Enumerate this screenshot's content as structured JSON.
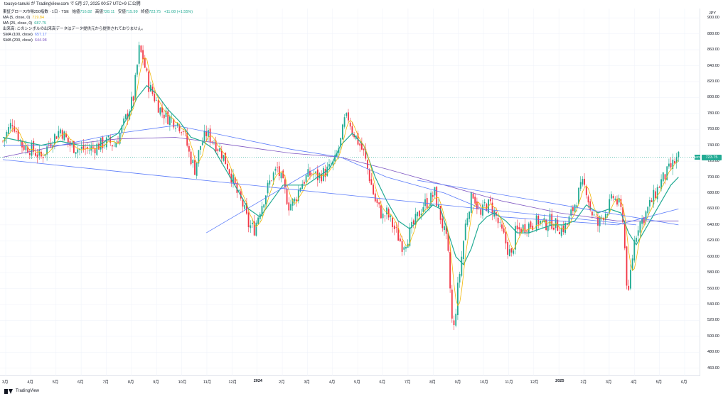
{
  "header": {
    "published_by": "tousyo-tanuki が TradingView.com で 5月 27, 2025 00:57 UTC+9 に公開"
  },
  "legend": {
    "symbol": "東証グロース市場250指数 · 1日 · TSE",
    "ohlc": [
      {
        "label": "始値",
        "value": "716.82"
      },
      {
        "label": "高値",
        "value": "728.11"
      },
      {
        "label": "安値",
        "value": "715.99"
      },
      {
        "label": "終値",
        "value": "723.75"
      }
    ],
    "change": "+11.08 (+1.55%)",
    "indicators": [
      {
        "label": "MA (5, close, 0)",
        "value": "719.84",
        "color": "#f2b705"
      },
      {
        "label": "MA (25, close, 0)",
        "value": "687.75",
        "color": "#22ab94"
      },
      {
        "label": "出来高: このシンボルの出来高データはデータ提供元から提供されておりません。",
        "value": "",
        "color": "#131722"
      },
      {
        "label": "SMA (100, close)",
        "value": "657.17",
        "color": "#5b7cfa"
      },
      {
        "label": "SMA (200, close)",
        "value": "644.98",
        "color": "#7e57c2"
      }
    ]
  },
  "price_axis": {
    "currency": "JPY",
    "ticks": [
      "900.00",
      "880.00",
      "860.00",
      "840.00",
      "820.00",
      "800.00",
      "780.00",
      "760.00",
      "740.00",
      "720.00",
      "700.00",
      "680.00",
      "660.00",
      "640.00",
      "620.00",
      "600.00",
      "580.00",
      "560.00",
      "540.00",
      "520.00",
      "500.00",
      "480.00",
      "460.00"
    ],
    "tag_label": "MOS",
    "current_price": "723.75"
  },
  "time_axis": {
    "ticks": [
      "3月",
      "4月",
      "5月",
      "6月",
      "7月",
      "8月",
      "9月",
      "10月",
      "11月",
      "12月",
      "2024",
      "2月",
      "3月",
      "4月",
      "5月",
      "6月",
      "7月",
      "8月",
      "9月",
      "10月",
      "11月",
      "12月",
      "2025",
      "2月",
      "3月",
      "4月",
      "5月",
      "6月"
    ]
  },
  "footer": {
    "brand": "TradingView"
  },
  "colors": {
    "up": "#22ab94",
    "down": "#f23645",
    "ma5": "#f2b705",
    "ma25": "#22ab94",
    "sma100": "#5b7cfa",
    "sma200": "#7e57c2",
    "trendline": "#5b7cfa"
  },
  "chart_data": {
    "type": "candlestick",
    "ylim": [
      450,
      910
    ],
    "x": [
      "2023-03",
      "2023-04",
      "2023-05",
      "2023-06",
      "2023-07",
      "2023-08",
      "2023-09",
      "2023-10",
      "2023-11",
      "2023-12",
      "2024-01",
      "2024-02",
      "2024-03",
      "2024-04",
      "2024-05",
      "2024-06",
      "2024-07",
      "2024-08",
      "2024-09",
      "2024-10",
      "2024-11",
      "2024-12",
      "2025-01",
      "2025-02",
      "2025-03",
      "2025-04",
      "2025-05",
      "2025-06"
    ],
    "close_path": [
      [
        0,
        745
      ],
      [
        5,
        770
      ],
      [
        10,
        740
      ],
      [
        15,
        735
      ],
      [
        20,
        725
      ],
      [
        25,
        745
      ],
      [
        30,
        760
      ],
      [
        35,
        740
      ],
      [
        40,
        735
      ],
      [
        45,
        735
      ],
      [
        50,
        740
      ],
      [
        55,
        745
      ],
      [
        58,
        740
      ],
      [
        62,
        760
      ],
      [
        65,
        780
      ],
      [
        68,
        800
      ],
      [
        71,
        860
      ],
      [
        73,
        850
      ],
      [
        76,
        815
      ],
      [
        79,
        800
      ],
      [
        82,
        785
      ],
      [
        86,
        775
      ],
      [
        90,
        770
      ],
      [
        94,
        760
      ],
      [
        97,
        730
      ],
      [
        100,
        710
      ],
      [
        103,
        740
      ],
      [
        106,
        755
      ],
      [
        110,
        745
      ],
      [
        114,
        730
      ],
      [
        117,
        715
      ],
      [
        120,
        695
      ],
      [
        122,
        680
      ],
      [
        125,
        665
      ],
      [
        128,
        640
      ],
      [
        131,
        635
      ],
      [
        134,
        660
      ],
      [
        137,
        680
      ],
      [
        140,
        700
      ],
      [
        143,
        710
      ],
      [
        146,
        690
      ],
      [
        149,
        665
      ],
      [
        152,
        670
      ],
      [
        155,
        690
      ],
      [
        158,
        700
      ],
      [
        161,
        705
      ],
      [
        164,
        700
      ],
      [
        167,
        705
      ],
      [
        170,
        710
      ],
      [
        173,
        720
      ],
      [
        176,
        745
      ],
      [
        178,
        770
      ],
      [
        180,
        775
      ],
      [
        182,
        760
      ],
      [
        184,
        750
      ],
      [
        186,
        740
      ],
      [
        188,
        730
      ],
      [
        190,
        710
      ],
      [
        192,
        690
      ],
      [
        194,
        670
      ],
      [
        196,
        660
      ],
      [
        198,
        650
      ],
      [
        200,
        655
      ],
      [
        203,
        640
      ],
      [
        206,
        625
      ],
      [
        208,
        615
      ],
      [
        210,
        620
      ],
      [
        213,
        635
      ],
      [
        216,
        650
      ],
      [
        219,
        665
      ],
      [
        222,
        670
      ],
      [
        225,
        680
      ],
      [
        227,
        660
      ],
      [
        229,
        640
      ],
      [
        231,
        620
      ],
      [
        232,
        600
      ],
      [
        233,
        560
      ],
      [
        234,
        520
      ],
      [
        235,
        510
      ],
      [
        237,
        560
      ],
      [
        239,
        600
      ],
      [
        241,
        640
      ],
      [
        243,
        665
      ],
      [
        245,
        680
      ],
      [
        247,
        665
      ],
      [
        249,
        650
      ],
      [
        251,
        665
      ],
      [
        254,
        665
      ],
      [
        257,
        650
      ],
      [
        259,
        635
      ],
      [
        261,
        625
      ],
      [
        263,
        610
      ],
      [
        265,
        600
      ],
      [
        267,
        630
      ],
      [
        270,
        635
      ],
      [
        273,
        640
      ],
      [
        276,
        640
      ],
      [
        279,
        645
      ],
      [
        282,
        640
      ],
      [
        285,
        645
      ],
      [
        288,
        640
      ],
      [
        291,
        635
      ],
      [
        294,
        640
      ],
      [
        297,
        660
      ],
      [
        300,
        680
      ],
      [
        302,
        690
      ],
      [
        304,
        685
      ],
      [
        306,
        660
      ],
      [
        308,
        650
      ],
      [
        310,
        640
      ],
      [
        312,
        650
      ],
      [
        315,
        660
      ],
      [
        318,
        675
      ],
      [
        321,
        665
      ],
      [
        323,
        650
      ],
      [
        324,
        610
      ],
      [
        325,
        570
      ],
      [
        326,
        550
      ],
      [
        327,
        580
      ],
      [
        329,
        620
      ],
      [
        331,
        640
      ],
      [
        334,
        650
      ],
      [
        337,
        665
      ],
      [
        340,
        680
      ],
      [
        343,
        695
      ],
      [
        346,
        705
      ],
      [
        349,
        716
      ],
      [
        352,
        725
      ]
    ],
    "ma25_path": [
      [
        0,
        750
      ],
      [
        10,
        745
      ],
      [
        20,
        740
      ],
      [
        30,
        745
      ],
      [
        40,
        740
      ],
      [
        50,
        740
      ],
      [
        60,
        755
      ],
      [
        65,
        775
      ],
      [
        70,
        800
      ],
      [
        75,
        815
      ],
      [
        80,
        805
      ],
      [
        86,
        785
      ],
      [
        92,
        770
      ],
      [
        98,
        750
      ],
      [
        104,
        745
      ],
      [
        110,
        735
      ],
      [
        116,
        710
      ],
      [
        122,
        685
      ],
      [
        128,
        660
      ],
      [
        134,
        650
      ],
      [
        140,
        670
      ],
      [
        146,
        690
      ],
      [
        152,
        690
      ],
      [
        158,
        690
      ],
      [
        164,
        700
      ],
      [
        170,
        710
      ],
      [
        176,
        740
      ],
      [
        182,
        755
      ],
      [
        188,
        740
      ],
      [
        194,
        700
      ],
      [
        200,
        670
      ],
      [
        206,
        645
      ],
      [
        212,
        635
      ],
      [
        218,
        650
      ],
      [
        224,
        665
      ],
      [
        228,
        660
      ],
      [
        232,
        630
      ],
      [
        236,
        600
      ],
      [
        240,
        590
      ],
      [
        244,
        610
      ],
      [
        248,
        640
      ],
      [
        252,
        650
      ],
      [
        256,
        655
      ],
      [
        262,
        645
      ],
      [
        268,
        630
      ],
      [
        274,
        630
      ],
      [
        280,
        635
      ],
      [
        286,
        640
      ],
      [
        292,
        640
      ],
      [
        298,
        645
      ],
      [
        304,
        665
      ],
      [
        310,
        655
      ],
      [
        316,
        660
      ],
      [
        322,
        655
      ],
      [
        326,
        630
      ],
      [
        330,
        615
      ],
      [
        336,
        640
      ],
      [
        342,
        665
      ],
      [
        348,
        690
      ],
      [
        352,
        700
      ]
    ],
    "sma100_path": [
      [
        0,
        740
      ],
      [
        30,
        740
      ],
      [
        60,
        755
      ],
      [
        90,
        765
      ],
      [
        120,
        750
      ],
      [
        150,
        735
      ],
      [
        176,
        725
      ],
      [
        200,
        700
      ],
      [
        230,
        680
      ],
      [
        260,
        650
      ],
      [
        290,
        645
      ],
      [
        320,
        640
      ],
      [
        352,
        660
      ]
    ],
    "sma200_path": [
      [
        0,
        725
      ],
      [
        30,
        740
      ],
      [
        60,
        748
      ],
      [
        90,
        750
      ],
      [
        120,
        740
      ],
      [
        150,
        730
      ],
      [
        176,
        725
      ],
      [
        200,
        710
      ],
      [
        230,
        690
      ],
      [
        260,
        670
      ],
      [
        290,
        655
      ],
      [
        320,
        645
      ],
      [
        352,
        645
      ]
    ],
    "trendlines": [
      {
        "from": [
          0,
          722
        ],
        "to": [
          330,
          640
        ]
      },
      {
        "from": [
          106,
          630
        ],
        "to": [
          168,
          718
        ]
      },
      {
        "from": [
          216,
          696
        ],
        "to": [
          352,
          640
        ]
      }
    ]
  }
}
